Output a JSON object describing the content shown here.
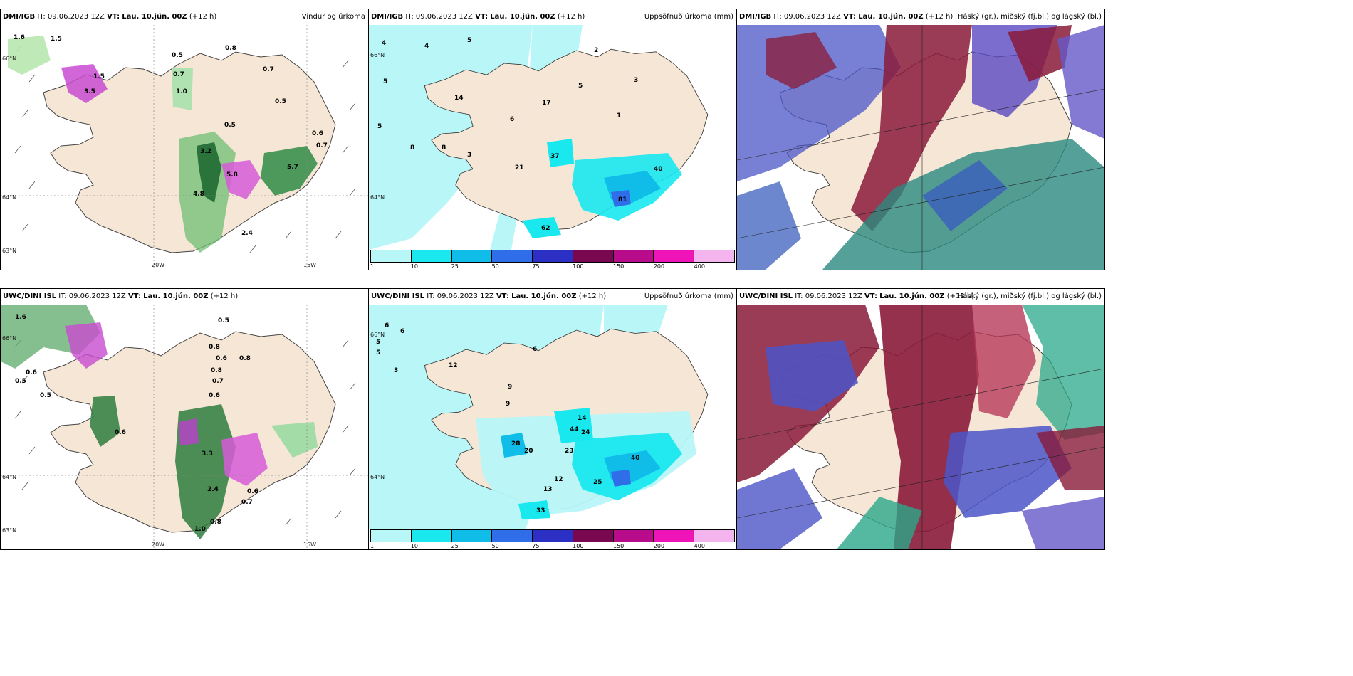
{
  "legend": {
    "ticks": [
      "1",
      "10",
      "25",
      "50",
      "75",
      "100",
      "150",
      "200",
      "400"
    ],
    "colors": [
      "#b8f6f8",
      "#19e8ef",
      "#10bde8",
      "#2f6ee8",
      "#2c2fc4",
      "#7a0850",
      "#b80c8c",
      "#ee14b8",
      "#f4b4ee"
    ]
  },
  "axis_labels": {
    "lat66": "66°N",
    "lat64": "64°N",
    "lat63": "63°N",
    "lon20": "20W",
    "lon15": "15W"
  },
  "panels": [
    {
      "source": "DMI/IGB",
      "it": "IT: 09.06.2023 12Z",
      "vt_label": "VT:",
      "vt": "Lau. 10.jún. 00Z",
      "lead": "(+12 h)",
      "title": "Vindur og úrkoma",
      "values": [
        "0.8",
        "0.5",
        "0.7",
        "0.7",
        "1.5",
        "3.5",
        "1.0",
        "0.5",
        "0.5",
        "0.6",
        "0.7",
        "3.2",
        "5.8",
        "5.7",
        "4.8",
        "2.4",
        "1.5",
        "1.6"
      ]
    },
    {
      "source": "DMI/IGB",
      "it": "IT: 09.06.2023 12Z",
      "vt_label": "VT:",
      "vt": "Lau. 10.jún. 00Z",
      "lead": "(+12 h)",
      "title": "Uppsöfnuð úrkoma (mm)",
      "values": [
        "4",
        "4",
        "5",
        "5",
        "5",
        "2",
        "3",
        "5",
        "1",
        "17",
        "14",
        "6",
        "8",
        "3",
        "8",
        "37",
        "21",
        "40",
        "62",
        "81"
      ]
    },
    {
      "source": "DMI/IGB",
      "it": "IT: 09.06.2023 12Z",
      "vt_label": "VT:",
      "vt": "Lau. 10.jún. 00Z",
      "lead": "(+12 h)",
      "title": "Háský (gr.), miðský (fj.bl.) og lágský (bl.)"
    },
    {
      "source": "UWC/DINI ISL",
      "it": "IT: 09.06.2023 12Z",
      "vt_label": "VT:",
      "vt": "Lau. 10.jún. 00Z",
      "lead": "(+12 h)",
      "title": "",
      "values": [
        "1.6",
        "0.5",
        "0.8",
        "0.8",
        "0.6",
        "0.6",
        "0.5",
        "0.5",
        "0.6",
        "0.8",
        "0.7",
        "0.6",
        "3.3",
        "2.4",
        "1.0",
        "0.8",
        "0.6",
        "0.7"
      ]
    },
    {
      "source": "UWC/DINI ISL",
      "it": "IT: 09.06.2023 12Z",
      "vt_label": "VT:",
      "vt": "Lau. 10.jún. 00Z",
      "lead": "(+12 h)",
      "title": "Uppsöfnuð úrkoma (mm)",
      "values": [
        "6",
        "5",
        "5",
        "3",
        "6",
        "12",
        "9",
        "6",
        "9",
        "44",
        "14",
        "24",
        "23",
        "28",
        "20",
        "13",
        "12",
        "25",
        "33",
        "40"
      ]
    },
    {
      "source": "UWC/DINI ISL",
      "it": "IT: 09.06.2023 12Z",
      "vt_label": "VT:",
      "vt": "Lau. 10.jún. 00Z",
      "lead": "(+12 h)",
      "title": "Háský (gr.), miðský (fj.bl.) og lágský (bl.)"
    }
  ]
}
